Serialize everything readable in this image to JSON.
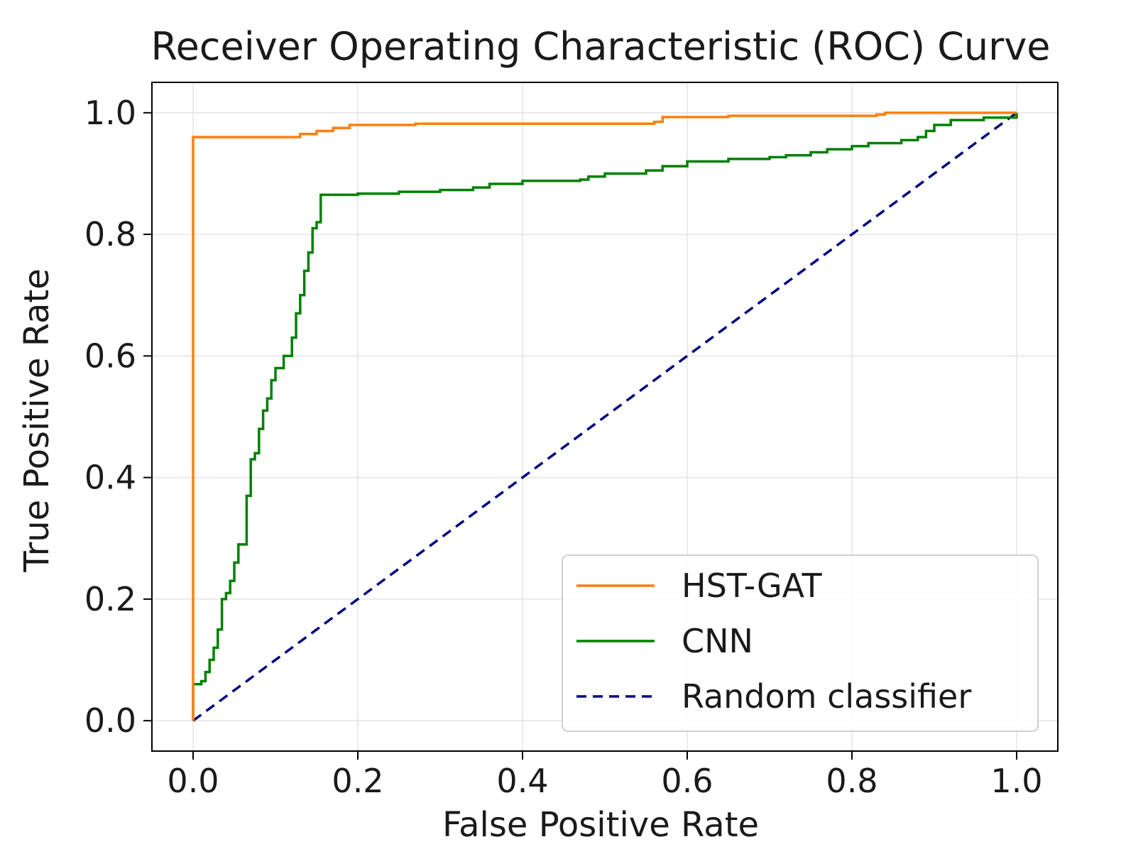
{
  "chart_data": {
    "type": "line",
    "title": "Receiver Operating Characteristic (ROC) Curve",
    "xlabel": "False Positive Rate",
    "ylabel": "True Positive Rate",
    "xlim": [
      -0.05,
      1.05
    ],
    "ylim": [
      -0.05,
      1.05
    ],
    "xticks": [
      0.0,
      0.2,
      0.4,
      0.6,
      0.8,
      1.0
    ],
    "yticks": [
      0.0,
      0.2,
      0.4,
      0.6,
      0.8,
      1.0
    ],
    "xtick_labels": [
      "0.0",
      "0.2",
      "0.4",
      "0.6",
      "0.8",
      "1.0"
    ],
    "ytick_labels": [
      "0.0",
      "0.2",
      "0.4",
      "0.6",
      "0.8",
      "1.0"
    ],
    "grid": true,
    "legend_position": "lower-right",
    "series": [
      {
        "name": "HST-GAT",
        "color": "#ff7f0e",
        "style": "solid",
        "step": true,
        "points": [
          [
            0,
            0
          ],
          [
            0,
            0.96
          ],
          [
            0.12,
            0.96
          ],
          [
            0.13,
            0.965
          ],
          [
            0.15,
            0.97
          ],
          [
            0.17,
            0.975
          ],
          [
            0.19,
            0.98
          ],
          [
            0.27,
            0.982
          ],
          [
            0.56,
            0.985
          ],
          [
            0.57,
            0.993
          ],
          [
            0.65,
            0.995
          ],
          [
            0.83,
            0.997
          ],
          [
            0.84,
            1.0
          ],
          [
            1.0,
            1.0
          ]
        ]
      },
      {
        "name": "CNN",
        "color": "#008000",
        "style": "solid",
        "step": true,
        "points": [
          [
            0,
            0
          ],
          [
            0,
            0.06
          ],
          [
            0.01,
            0.065
          ],
          [
            0.015,
            0.08
          ],
          [
            0.02,
            0.1
          ],
          [
            0.025,
            0.12
          ],
          [
            0.03,
            0.15
          ],
          [
            0.035,
            0.2
          ],
          [
            0.04,
            0.21
          ],
          [
            0.045,
            0.23
          ],
          [
            0.05,
            0.26
          ],
          [
            0.055,
            0.29
          ],
          [
            0.06,
            0.29
          ],
          [
            0.065,
            0.37
          ],
          [
            0.07,
            0.43
          ],
          [
            0.075,
            0.44
          ],
          [
            0.08,
            0.48
          ],
          [
            0.085,
            0.51
          ],
          [
            0.09,
            0.53
          ],
          [
            0.095,
            0.56
          ],
          [
            0.1,
            0.58
          ],
          [
            0.11,
            0.6
          ],
          [
            0.115,
            0.6
          ],
          [
            0.12,
            0.63
          ],
          [
            0.125,
            0.67
          ],
          [
            0.13,
            0.7
          ],
          [
            0.135,
            0.74
          ],
          [
            0.14,
            0.77
          ],
          [
            0.145,
            0.81
          ],
          [
            0.15,
            0.82
          ],
          [
            0.155,
            0.865
          ],
          [
            0.2,
            0.867
          ],
          [
            0.25,
            0.87
          ],
          [
            0.3,
            0.873
          ],
          [
            0.34,
            0.877
          ],
          [
            0.36,
            0.883
          ],
          [
            0.4,
            0.888
          ],
          [
            0.47,
            0.89
          ],
          [
            0.48,
            0.895
          ],
          [
            0.5,
            0.9
          ],
          [
            0.55,
            0.905
          ],
          [
            0.57,
            0.912
          ],
          [
            0.6,
            0.92
          ],
          [
            0.65,
            0.924
          ],
          [
            0.7,
            0.927
          ],
          [
            0.72,
            0.93
          ],
          [
            0.75,
            0.935
          ],
          [
            0.77,
            0.94
          ],
          [
            0.8,
            0.945
          ],
          [
            0.82,
            0.95
          ],
          [
            0.86,
            0.955
          ],
          [
            0.88,
            0.96
          ],
          [
            0.89,
            0.97
          ],
          [
            0.9,
            0.98
          ],
          [
            0.92,
            0.988
          ],
          [
            0.96,
            0.992
          ],
          [
            1.0,
            1.0
          ]
        ]
      },
      {
        "name": "Random classifier",
        "color": "#000080",
        "style": "dashed",
        "step": false,
        "points": [
          [
            0,
            0
          ],
          [
            1,
            1
          ]
        ]
      }
    ]
  }
}
